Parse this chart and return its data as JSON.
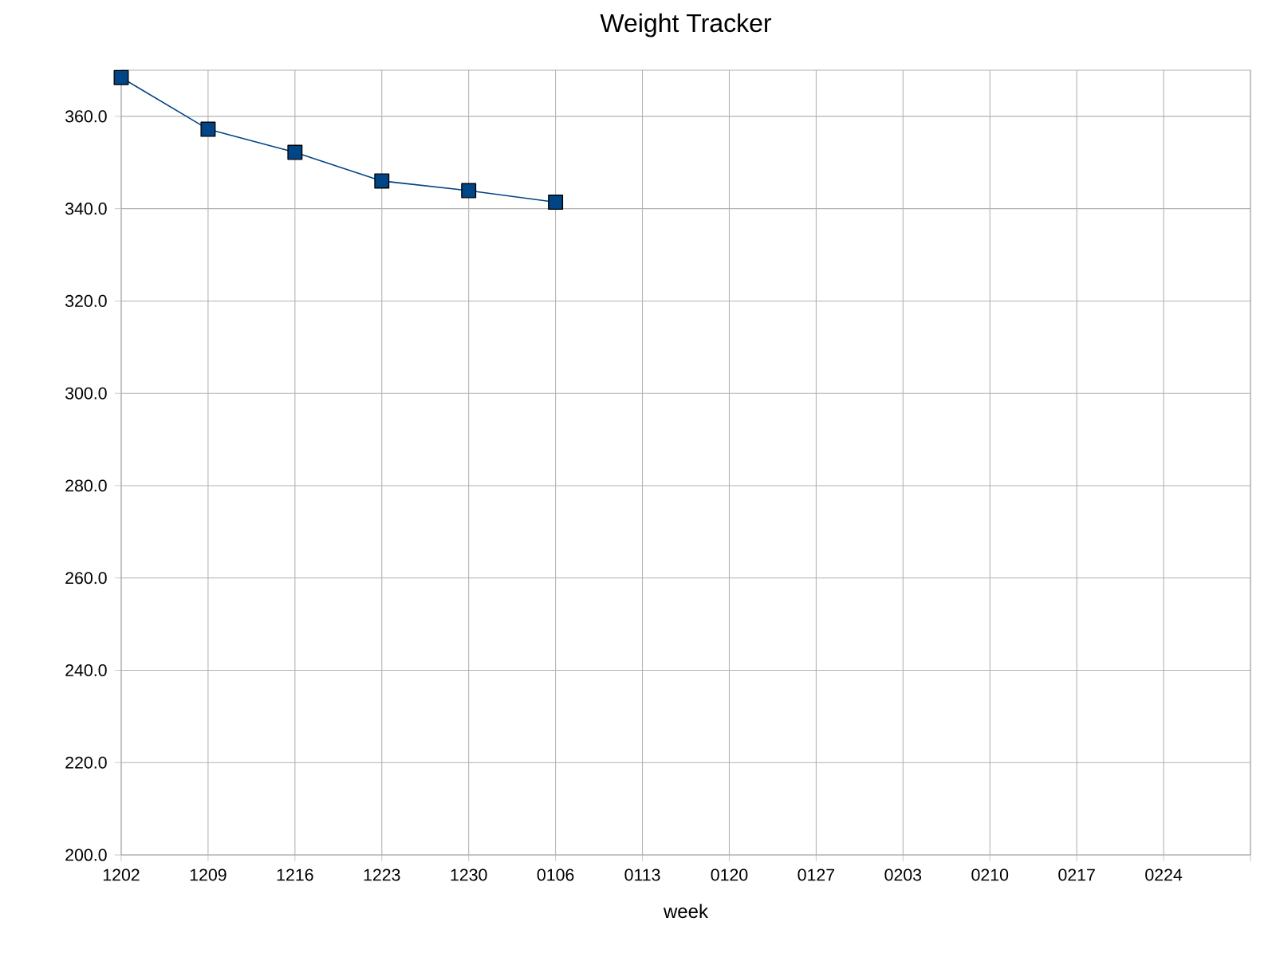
{
  "chart_data": {
    "type": "line",
    "title": "Weight Tracker",
    "xlabel": "week",
    "categories": [
      "1202",
      "1209",
      "1216",
      "1223",
      "1230",
      "0106",
      "0113",
      "0120",
      "0127",
      "0203",
      "0210",
      "0217",
      "0224",
      null
    ],
    "series": [
      {
        "color": "#004586",
        "values": [
          368.4,
          357.2,
          352.2,
          346.0,
          343.9,
          341.4,
          null,
          null,
          null,
          null,
          null,
          null,
          null,
          null
        ]
      }
    ],
    "ylim": [
      200,
      370
    ],
    "yticks": [
      {
        "value": 200,
        "label": "200.0"
      },
      {
        "value": 220,
        "label": "220.0"
      },
      {
        "value": 240,
        "label": "240.0"
      },
      {
        "value": 260,
        "label": "260.0"
      },
      {
        "value": 280,
        "label": "280.0"
      },
      {
        "value": 300,
        "label": "300.0"
      },
      {
        "value": 320,
        "label": "320.0"
      },
      {
        "value": 340,
        "label": "340.0"
      },
      {
        "value": 360,
        "label": "360.0"
      }
    ],
    "grid": true,
    "marker": "square",
    "line_style": "solid"
  }
}
